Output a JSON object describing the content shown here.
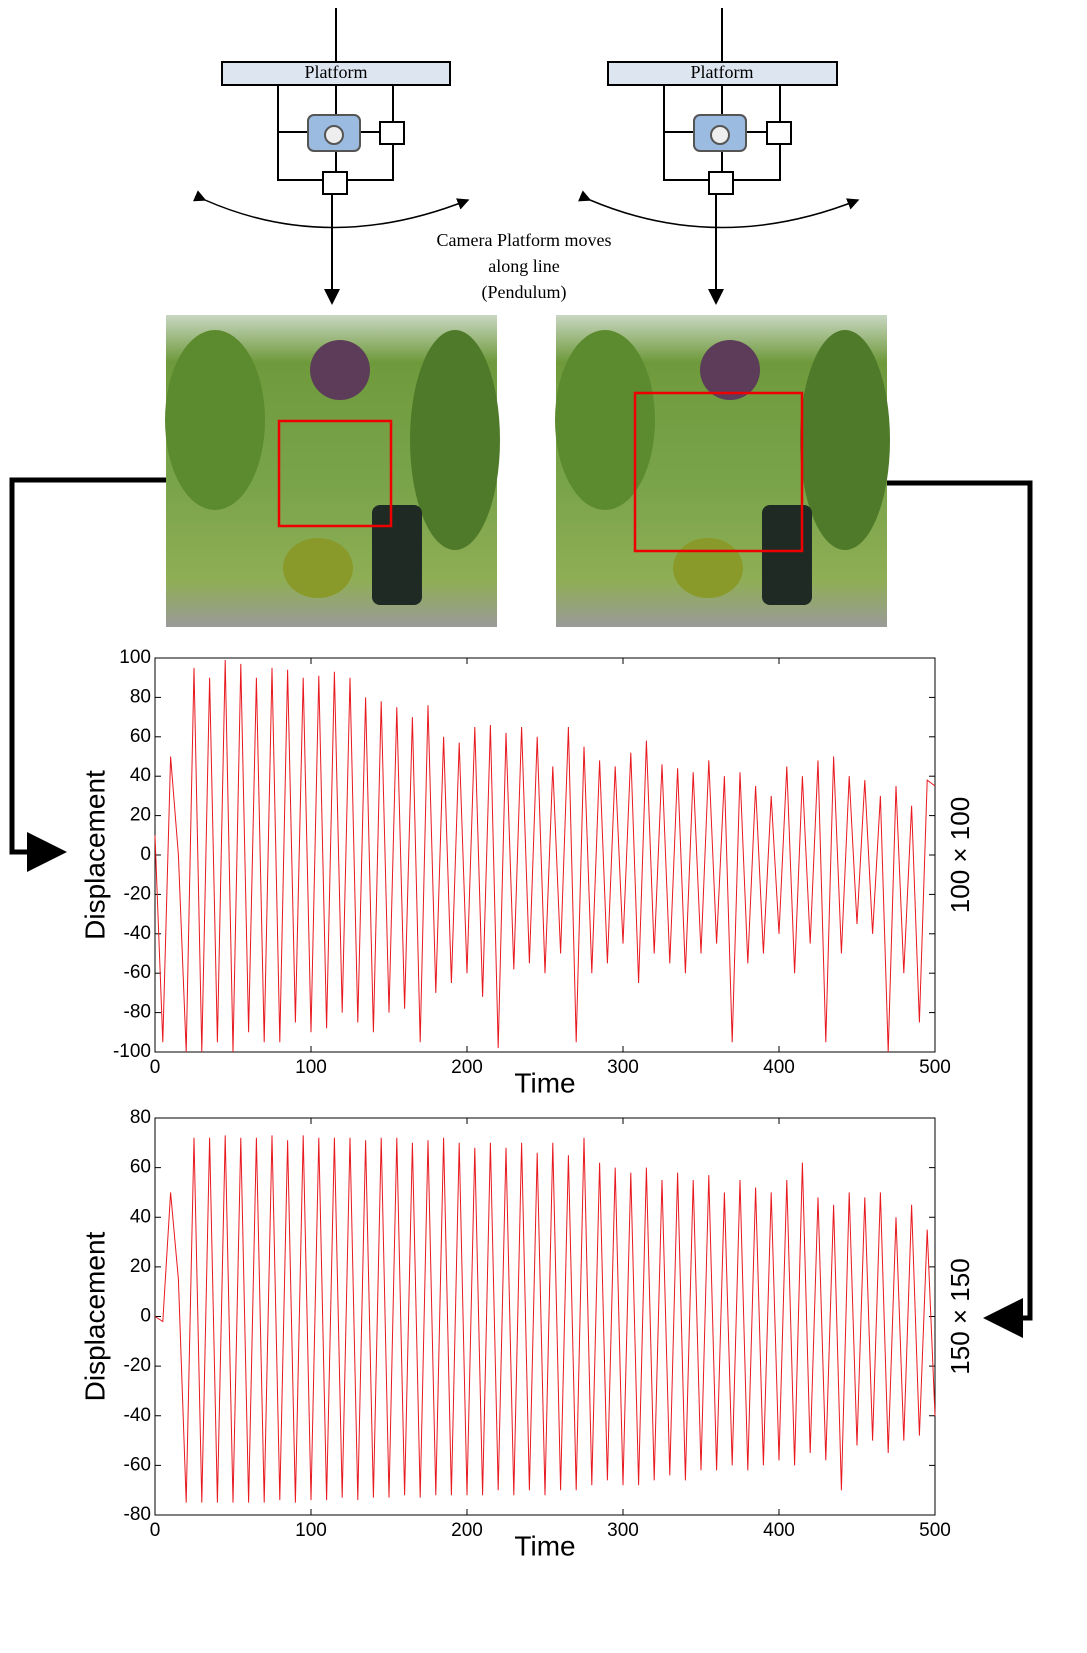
{
  "diagram": {
    "platform_labels": [
      "Platform",
      "Platform"
    ],
    "caption": [
      "Camera Platform moves",
      "along line",
      "(Pendulum)"
    ]
  },
  "chart_data": [
    {
      "type": "line",
      "xlabel": "Time",
      "ylabel": "Displacement",
      "annotation": "100 × 100",
      "x": [
        0,
        5,
        10,
        15,
        20,
        25,
        30,
        35,
        40,
        45,
        50,
        55,
        60,
        65,
        70,
        75,
        80,
        85,
        90,
        95,
        100,
        105,
        110,
        115,
        120,
        125,
        130,
        135,
        140,
        145,
        150,
        155,
        160,
        165,
        170,
        175,
        180,
        185,
        190,
        195,
        200,
        205,
        210,
        215,
        220,
        225,
        230,
        235,
        240,
        245,
        250,
        255,
        260,
        265,
        270,
        275,
        280,
        285,
        290,
        295,
        300,
        305,
        310,
        315,
        320,
        325,
        330,
        335,
        340,
        345,
        350,
        355,
        360,
        365,
        370,
        375,
        380,
        385,
        390,
        395,
        400,
        405,
        410,
        415,
        420,
        425,
        430,
        435,
        440,
        445,
        450,
        455,
        460,
        465,
        470,
        475,
        480,
        485,
        490,
        495,
        500
      ],
      "series": [
        {
          "color": "#e8191f",
          "values": [
            10,
            -95,
            50,
            0,
            -100,
            95,
            -100,
            90,
            -95,
            99,
            -100,
            97,
            -90,
            90,
            -95,
            95,
            -95,
            94,
            -85,
            90,
            -90,
            91,
            -88,
            93,
            -80,
            90,
            -85,
            80,
            -90,
            78,
            -80,
            75,
            -78,
            70,
            -95,
            76,
            -70,
            60,
            -65,
            57,
            -60,
            65,
            -72,
            66,
            -98,
            62,
            -58,
            65,
            -55,
            60,
            -60,
            45,
            -50,
            65,
            -95,
            55,
            -60,
            48,
            -55,
            45,
            -45,
            52,
            -65,
            58,
            -50,
            46,
            -55,
            44,
            -60,
            42,
            -50,
            48,
            -45,
            40,
            -95,
            42,
            -55,
            35,
            -50,
            30,
            -40,
            45,
            -60,
            40,
            -45,
            48,
            -95,
            50,
            -50,
            40,
            -35,
            38,
            -40,
            30,
            -100,
            35,
            -60,
            25,
            -85,
            38,
            35
          ]
        }
      ],
      "xlim": [
        0,
        500
      ],
      "ylim": [
        -100,
        100
      ],
      "xticks": [
        0,
        100,
        200,
        300,
        400,
        500
      ],
      "yticks": [
        -100,
        -80,
        -60,
        -40,
        -20,
        0,
        20,
        40,
        60,
        80,
        100
      ]
    },
    {
      "type": "line",
      "xlabel": "Time",
      "ylabel": "Displacement",
      "annotation": "150 × 150",
      "x": [
        0,
        5,
        10,
        15,
        20,
        25,
        30,
        35,
        40,
        45,
        50,
        55,
        60,
        65,
        70,
        75,
        80,
        85,
        90,
        95,
        100,
        105,
        110,
        115,
        120,
        125,
        130,
        135,
        140,
        145,
        150,
        155,
        160,
        165,
        170,
        175,
        180,
        185,
        190,
        195,
        200,
        205,
        210,
        215,
        220,
        225,
        230,
        235,
        240,
        245,
        250,
        255,
        260,
        265,
        270,
        275,
        280,
        285,
        290,
        295,
        300,
        305,
        310,
        315,
        320,
        325,
        330,
        335,
        340,
        345,
        350,
        355,
        360,
        365,
        370,
        375,
        380,
        385,
        390,
        395,
        400,
        405,
        410,
        415,
        420,
        425,
        430,
        435,
        440,
        445,
        450,
        455,
        460,
        465,
        470,
        475,
        480,
        485,
        490,
        495,
        500
      ],
      "series": [
        {
          "color": "#e8191f",
          "values": [
            0,
            -2,
            50,
            15,
            -75,
            72,
            -75,
            72,
            -75,
            73,
            -75,
            72,
            -75,
            72,
            -75,
            73,
            -74,
            71,
            -75,
            73,
            -74,
            72,
            -74,
            72,
            -73,
            72,
            -74,
            71,
            -73,
            72,
            -73,
            72,
            -72,
            70,
            -73,
            71,
            -72,
            72,
            -72,
            70,
            -72,
            68,
            -72,
            70,
            -70,
            68,
            -72,
            70,
            -70,
            66,
            -72,
            70,
            -70,
            65,
            -70,
            72,
            -68,
            62,
            -66,
            60,
            -68,
            58,
            -68,
            60,
            -66,
            55,
            -64,
            58,
            -66,
            55,
            -62,
            57,
            -62,
            50,
            -60,
            55,
            -62,
            52,
            -60,
            50,
            -58,
            55,
            -60,
            62,
            -55,
            48,
            -58,
            45,
            -70,
            50,
            -52,
            48,
            -50,
            50,
            -55,
            40,
            -50,
            45,
            -48,
            35,
            -40
          ]
        }
      ],
      "xlim": [
        0,
        500
      ],
      "ylim": [
        -80,
        80
      ],
      "xticks": [
        0,
        100,
        200,
        300,
        400,
        500
      ],
      "yticks": [
        -80,
        -60,
        -40,
        -20,
        0,
        20,
        40,
        60,
        80
      ]
    }
  ]
}
